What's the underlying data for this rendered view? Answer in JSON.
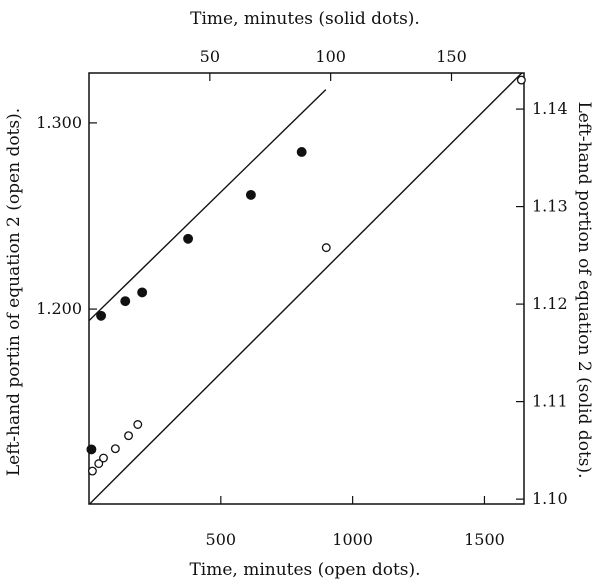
{
  "chart_data": {
    "type": "scatter",
    "title": "",
    "grid": false,
    "x_bottom": {
      "label": "Time, minutes (open dots).",
      "range": [
        0,
        1650
      ],
      "ticks": [
        500,
        1000,
        1500
      ],
      "tick_labels": [
        "500",
        "1000",
        "1500"
      ]
    },
    "x_top": {
      "label": "Time, minutes (solid dots).",
      "range": [
        0,
        180
      ],
      "ticks": [
        50,
        100,
        150
      ],
      "tick_labels": [
        "50",
        "100",
        "150"
      ]
    },
    "y_left": {
      "label": "Left-hand portin of equation 2 (open dots).",
      "range": [
        1.0953,
        1.3268
      ],
      "ticks": [
        1.2,
        1.3
      ],
      "tick_labels": [
        "1.200",
        "1.300"
      ]
    },
    "y_right": {
      "label": "Left-hand portion of equation 2 (solid dots).",
      "range": [
        1.0995,
        1.1437
      ],
      "ticks": [
        1.1,
        1.11,
        1.12,
        1.13,
        1.14
      ],
      "tick_labels": [
        "1.10",
        "1.11",
        "1.12",
        "1.13",
        "1.14"
      ]
    },
    "series": [
      {
        "marker": "open-circle",
        "x_axis": "bottom",
        "y_axis": "left",
        "x": [
          13,
          37,
          55,
          100,
          150,
          185,
          900,
          1640
        ],
        "y": [
          1.113,
          1.117,
          1.12,
          1.125,
          1.132,
          1.138,
          1.233,
          1.323
        ],
        "fit_line": {
          "x": [
            0,
            1650
          ],
          "y": [
            1.095,
            1.328
          ]
        }
      },
      {
        "marker": "filled-circle",
        "x_axis": "top",
        "y_axis": "right",
        "x": [
          1,
          5,
          15,
          22,
          41,
          67,
          88
        ],
        "y": [
          1.1051,
          1.1188,
          1.1203,
          1.1212,
          1.1267,
          1.1312,
          1.1356
        ],
        "fit_line": {
          "x": [
            0,
            98
          ],
          "y": [
            1.1183,
            1.142
          ]
        }
      }
    ]
  }
}
